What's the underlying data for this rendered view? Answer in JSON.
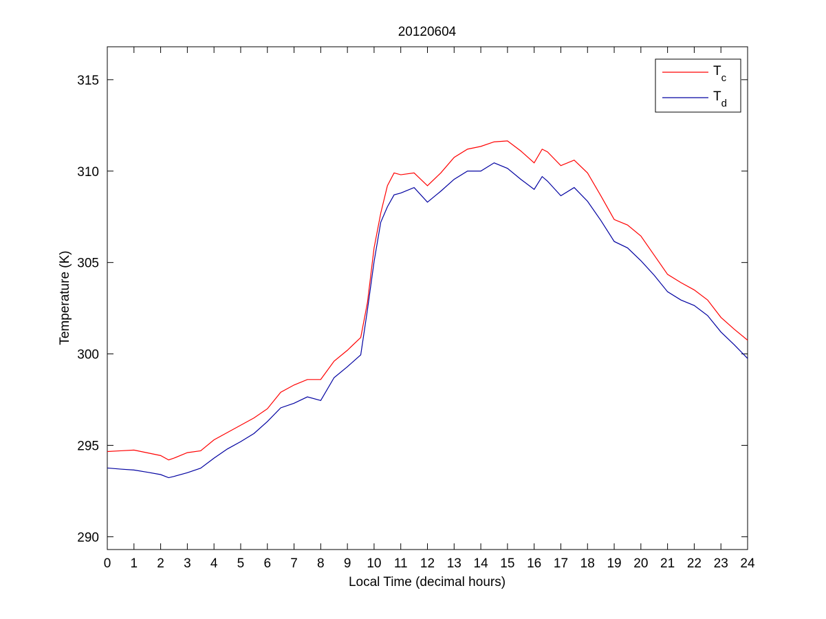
{
  "chart_data": {
    "type": "line",
    "title": "20120604",
    "xlabel": "Local Time (decimal hours)",
    "ylabel": "Temperature (K)",
    "x": [
      0,
      0.5,
      1,
      1.5,
      2,
      2.3,
      2.5,
      3,
      3.5,
      4,
      4.5,
      5,
      5.5,
      6,
      6.5,
      7,
      7.5,
      8,
      8.5,
      9,
      9.5,
      9.75,
      10,
      10.25,
      10.5,
      10.75,
      11,
      11.5,
      12,
      12.5,
      13,
      13.5,
      14,
      14.5,
      15,
      15.5,
      16,
      16.3,
      16.5,
      17,
      17.5,
      18,
      18.5,
      19,
      19.5,
      20,
      20.5,
      21,
      21.5,
      22,
      22.5,
      23,
      23.5,
      24
    ],
    "series": [
      {
        "name": "Tc",
        "color": "#ff0000",
        "values": [
          294.66,
          294.7,
          294.74,
          294.59,
          294.44,
          294.2,
          294.3,
          294.6,
          294.7,
          295.3,
          295.7,
          296.1,
          296.5,
          297.0,
          297.9,
          298.3,
          298.6,
          298.6,
          299.6,
          300.2,
          300.9,
          302.8,
          305.8,
          307.7,
          309.2,
          309.9,
          309.8,
          309.9,
          309.2,
          309.9,
          310.75,
          311.2,
          311.35,
          311.6,
          311.65,
          311.1,
          310.45,
          311.2,
          311.05,
          310.3,
          310.6,
          309.9,
          308.65,
          307.35,
          307.05,
          306.45,
          305.4,
          304.35,
          303.9,
          303.5,
          302.95,
          302.0,
          301.35,
          300.75
        ]
      },
      {
        "name": "Td",
        "color": "#0000a0",
        "values": [
          293.76,
          293.7,
          293.65,
          293.53,
          293.4,
          293.23,
          293.3,
          293.5,
          293.75,
          294.3,
          294.8,
          295.2,
          295.65,
          296.3,
          297.05,
          297.3,
          297.65,
          297.45,
          298.7,
          299.3,
          299.95,
          302.4,
          305.05,
          307.2,
          308.05,
          308.7,
          308.8,
          309.1,
          308.3,
          308.9,
          309.55,
          310.0,
          310.0,
          310.45,
          310.15,
          309.55,
          309.0,
          309.7,
          309.45,
          308.65,
          309.1,
          308.35,
          307.3,
          306.15,
          305.8,
          305.1,
          304.3,
          303.4,
          302.95,
          302.65,
          302.1,
          301.2,
          300.5,
          299.75
        ]
      }
    ],
    "xlim": [
      0,
      24
    ],
    "xticks": [
      0,
      1,
      2,
      3,
      4,
      5,
      6,
      7,
      8,
      9,
      10,
      11,
      12,
      13,
      14,
      15,
      16,
      17,
      18,
      19,
      20,
      21,
      22,
      23,
      24
    ],
    "ylim": [
      289.3,
      316.8
    ],
    "yticks": [
      290,
      295,
      300,
      305,
      310,
      315
    ],
    "grid": false,
    "legend": "upper right"
  }
}
